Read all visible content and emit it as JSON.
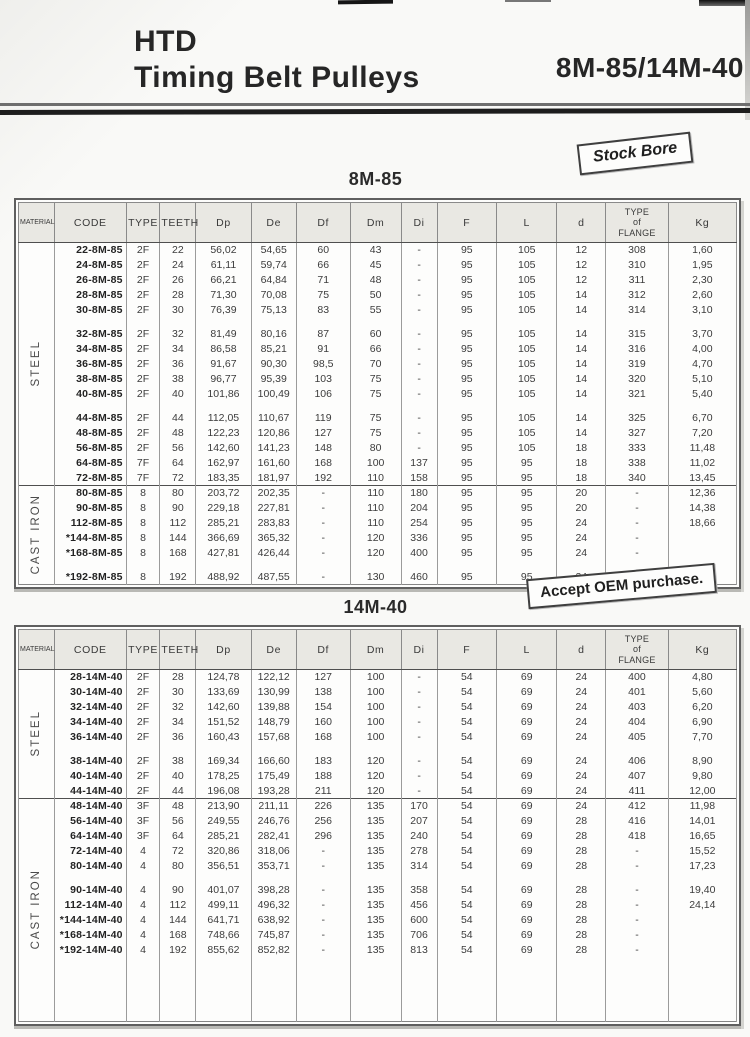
{
  "header": {
    "title_line1": "HTD",
    "title_line2": "Timing Belt Pulleys",
    "model_range": "8M-85/14M-40"
  },
  "badges": {
    "stock_bore": "Stock Bore",
    "oem": "Accept OEM purchase."
  },
  "table_columns": [
    "MATERIAL",
    "CODE",
    "TYPE",
    "TEETH",
    "Dp",
    "De",
    "Df",
    "Dm",
    "Di",
    "F",
    "L",
    "d",
    "TYPE\nof\nFLANGE",
    "Kg"
  ],
  "tables": [
    {
      "title": "8M-85",
      "sections": [
        {
          "material": "STEEL",
          "groups": [
            [
              [
                "22-8M-85",
                "2F",
                "22",
                "56,02",
                "54,65",
                "60",
                "43",
                "-",
                "95",
                "105",
                "12",
                "308",
                "1,60"
              ],
              [
                "24-8M-85",
                "2F",
                "24",
                "61,11",
                "59,74",
                "66",
                "45",
                "-",
                "95",
                "105",
                "12",
                "310",
                "1,95"
              ],
              [
                "26-8M-85",
                "2F",
                "26",
                "66,21",
                "64,84",
                "71",
                "48",
                "-",
                "95",
                "105",
                "12",
                "311",
                "2,30"
              ],
              [
                "28-8M-85",
                "2F",
                "28",
                "71,30",
                "70,08",
                "75",
                "50",
                "-",
                "95",
                "105",
                "14",
                "312",
                "2,60"
              ],
              [
                "30-8M-85",
                "2F",
                "30",
                "76,39",
                "75,13",
                "83",
                "55",
                "-",
                "95",
                "105",
                "14",
                "314",
                "3,10"
              ]
            ],
            [
              [
                "32-8M-85",
                "2F",
                "32",
                "81,49",
                "80,16",
                "87",
                "60",
                "-",
                "95",
                "105",
                "14",
                "315",
                "3,70"
              ],
              [
                "34-8M-85",
                "2F",
                "34",
                "86,58",
                "85,21",
                "91",
                "66",
                "-",
                "95",
                "105",
                "14",
                "316",
                "4,00"
              ],
              [
                "36-8M-85",
                "2F",
                "36",
                "91,67",
                "90,30",
                "98,5",
                "70",
                "-",
                "95",
                "105",
                "14",
                "319",
                "4,70"
              ],
              [
                "38-8M-85",
                "2F",
                "38",
                "96,77",
                "95,39",
                "103",
                "75",
                "-",
                "95",
                "105",
                "14",
                "320",
                "5,10"
              ],
              [
                "40-8M-85",
                "2F",
                "40",
                "101,86",
                "100,49",
                "106",
                "75",
                "-",
                "95",
                "105",
                "14",
                "321",
                "5,40"
              ]
            ],
            [
              [
                "44-8M-85",
                "2F",
                "44",
                "112,05",
                "110,67",
                "119",
                "75",
                "-",
                "95",
                "105",
                "14",
                "325",
                "6,70"
              ],
              [
                "48-8M-85",
                "2F",
                "48",
                "122,23",
                "120,86",
                "127",
                "75",
                "-",
                "95",
                "105",
                "14",
                "327",
                "7,20"
              ],
              [
                "56-8M-85",
                "2F",
                "56",
                "142,60",
                "141,23",
                "148",
                "80",
                "-",
                "95",
                "105",
                "18",
                "333",
                "11,48"
              ],
              [
                "64-8M-85",
                "7F",
                "64",
                "162,97",
                "161,60",
                "168",
                "100",
                "137",
                "95",
                "95",
                "18",
                "338",
                "11,02"
              ],
              [
                "72-8M-85",
                "7F",
                "72",
                "183,35",
                "181,97",
                "192",
                "110",
                "158",
                "95",
                "95",
                "18",
                "340",
                "13,45"
              ]
            ]
          ]
        },
        {
          "material": "CAST IRON",
          "groups": [
            [
              [
                "80-8M-85",
                "8",
                "80",
                "203,72",
                "202,35",
                "-",
                "110",
                "180",
                "95",
                "95",
                "20",
                "-",
                "12,36"
              ],
              [
                "90-8M-85",
                "8",
                "90",
                "229,18",
                "227,81",
                "-",
                "110",
                "204",
                "95",
                "95",
                "20",
                "-",
                "14,38"
              ],
              [
                "112-8M-85",
                "8",
                "112",
                "285,21",
                "283,83",
                "-",
                "110",
                "254",
                "95",
                "95",
                "24",
                "-",
                "18,66"
              ],
              [
                "*144-8M-85",
                "8",
                "144",
                "366,69",
                "365,32",
                "-",
                "120",
                "336",
                "95",
                "95",
                "24",
                "-",
                ""
              ],
              [
                "*168-8M-85",
                "8",
                "168",
                "427,81",
                "426,44",
                "-",
                "120",
                "400",
                "95",
                "95",
                "24",
                "-",
                ""
              ]
            ],
            [
              [
                "*192-8M-85",
                "8",
                "192",
                "488,92",
                "487,55",
                "-",
                "130",
                "460",
                "95",
                "95",
                "24",
                "-",
                ""
              ]
            ]
          ]
        }
      ]
    },
    {
      "title": "14M-40",
      "sections": [
        {
          "material": "STEEL",
          "groups": [
            [
              [
                "28-14M-40",
                "2F",
                "28",
                "124,78",
                "122,12",
                "127",
                "100",
                "-",
                "54",
                "69",
                "24",
                "400",
                "4,80"
              ],
              [
                "30-14M-40",
                "2F",
                "30",
                "133,69",
                "130,99",
                "138",
                "100",
                "-",
                "54",
                "69",
                "24",
                "401",
                "5,60"
              ],
              [
                "32-14M-40",
                "2F",
                "32",
                "142,60",
                "139,88",
                "154",
                "100",
                "-",
                "54",
                "69",
                "24",
                "403",
                "6,20"
              ],
              [
                "34-14M-40",
                "2F",
                "34",
                "151,52",
                "148,79",
                "160",
                "100",
                "-",
                "54",
                "69",
                "24",
                "404",
                "6,90"
              ],
              [
                "36-14M-40",
                "2F",
                "36",
                "160,43",
                "157,68",
                "168",
                "100",
                "-",
                "54",
                "69",
                "24",
                "405",
                "7,70"
              ]
            ],
            [
              [
                "38-14M-40",
                "2F",
                "38",
                "169,34",
                "166,60",
                "183",
                "120",
                "-",
                "54",
                "69",
                "24",
                "406",
                "8,90"
              ],
              [
                "40-14M-40",
                "2F",
                "40",
                "178,25",
                "175,49",
                "188",
                "120",
                "-",
                "54",
                "69",
                "24",
                "407",
                "9,80"
              ],
              [
                "44-14M-40",
                "2F",
                "44",
                "196,08",
                "193,28",
                "211",
                "120",
                "-",
                "54",
                "69",
                "24",
                "411",
                "12,00"
              ]
            ]
          ]
        },
        {
          "material": "CAST IRON",
          "groups": [
            [
              [
                "48-14M-40",
                "3F",
                "48",
                "213,90",
                "211,11",
                "226",
                "135",
                "170",
                "54",
                "69",
                "24",
                "412",
                "11,98"
              ],
              [
                "56-14M-40",
                "3F",
                "56",
                "249,55",
                "246,76",
                "256",
                "135",
                "207",
                "54",
                "69",
                "28",
                "416",
                "14,01"
              ],
              [
                "64-14M-40",
                "3F",
                "64",
                "285,21",
                "282,41",
                "296",
                "135",
                "240",
                "54",
                "69",
                "28",
                "418",
                "16,65"
              ],
              [
                "72-14M-40",
                "4",
                "72",
                "320,86",
                "318,06",
                "-",
                "135",
                "278",
                "54",
                "69",
                "28",
                "-",
                "15,52"
              ],
              [
                "80-14M-40",
                "4",
                "80",
                "356,51",
                "353,71",
                "-",
                "135",
                "314",
                "54",
                "69",
                "28",
                "-",
                "17,23"
              ]
            ],
            [
              [
                "90-14M-40",
                "4",
                "90",
                "401,07",
                "398,28",
                "-",
                "135",
                "358",
                "54",
                "69",
                "28",
                "-",
                "19,40"
              ],
              [
                "112-14M-40",
                "4",
                "112",
                "499,11",
                "496,32",
                "-",
                "135",
                "456",
                "54",
                "69",
                "28",
                "-",
                "24,14"
              ],
              [
                "*144-14M-40",
                "4",
                "144",
                "641,71",
                "638,92",
                "-",
                "135",
                "600",
                "54",
                "69",
                "28",
                "-",
                ""
              ],
              [
                "*168-14M-40",
                "4",
                "168",
                "748,66",
                "745,87",
                "-",
                "135",
                "706",
                "54",
                "69",
                "28",
                "-",
                ""
              ],
              [
                "*192-14M-40",
                "4",
                "192",
                "855,62",
                "852,82",
                "-",
                "135",
                "813",
                "54",
                "69",
                "28",
                "-",
                ""
              ]
            ]
          ]
        }
      ]
    }
  ]
}
